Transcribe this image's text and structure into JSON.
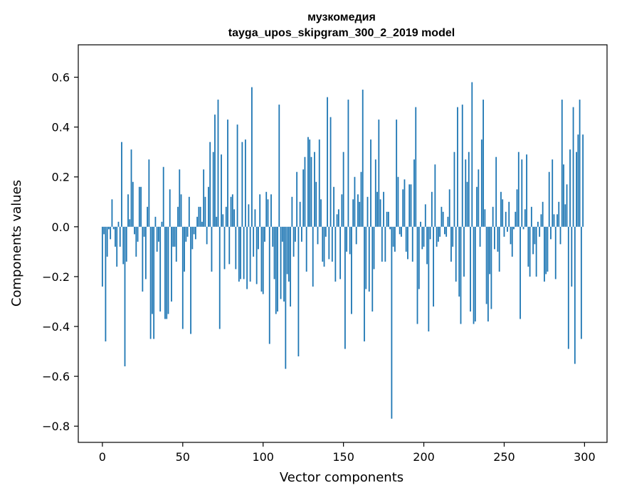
{
  "chart_data": {
    "type": "bar",
    "title": "музкомедия",
    "subtitle": "tayga_upos_skipgram_300_2_2019 model",
    "xlabel": "Vector components",
    "ylabel": "Components values",
    "xlim": [
      -15,
      314
    ],
    "ylim": [
      -0.865,
      0.73
    ],
    "xticks": [
      0,
      50,
      100,
      150,
      200,
      250,
      300
    ],
    "xtick_labels": [
      "0",
      "50",
      "100",
      "150",
      "200",
      "250",
      "300"
    ],
    "yticks": [
      -0.8,
      -0.6,
      -0.4,
      -0.2,
      0.0,
      0.2,
      0.4,
      0.6
    ],
    "ytick_labels": [
      "−0.8",
      "−0.6",
      "−0.4",
      "−0.2",
      "0.0",
      "0.2",
      "0.4",
      "0.6"
    ],
    "grid": false,
    "bar_color": "#1f77b4",
    "x": "0..299",
    "values": [
      -0.24,
      -0.03,
      -0.46,
      -0.12,
      -0.01,
      -0.05,
      0.11,
      -0.01,
      -0.08,
      -0.16,
      0.02,
      -0.08,
      0.34,
      -0.15,
      -0.56,
      -0.14,
      0.13,
      0.03,
      0.31,
      0.18,
      -0.03,
      -0.12,
      -0.06,
      0.16,
      0.16,
      -0.26,
      -0.04,
      -0.21,
      0.08,
      0.27,
      -0.45,
      -0.35,
      -0.45,
      0.04,
      -0.1,
      -0.06,
      -0.34,
      0.02,
      0.24,
      -0.37,
      -0.37,
      -0.35,
      0.15,
      -0.3,
      -0.08,
      -0.08,
      -0.14,
      0.08,
      0.23,
      0.13,
      -0.41,
      -0.18,
      -0.06,
      -0.04,
      0.12,
      -0.43,
      -0.09,
      -0.03,
      -0.05,
      0.04,
      0.08,
      0.08,
      0.02,
      0.23,
      0.12,
      -0.07,
      0.16,
      0.34,
      -0.18,
      0.3,
      0.45,
      0.04,
      0.51,
      -0.41,
      0.29,
      0.05,
      -0.17,
      0.08,
      0.43,
      -0.15,
      0.12,
      0.13,
      0.07,
      -0.17,
      0.41,
      -0.22,
      -0.21,
      0.34,
      -0.21,
      0.35,
      -0.25,
      0.09,
      -0.22,
      0.56,
      -0.12,
      0.07,
      -0.23,
      -0.09,
      0.13,
      -0.26,
      -0.27,
      -0.06,
      0.14,
      0.11,
      -0.47,
      0.13,
      -0.08,
      -0.21,
      -0.35,
      -0.34,
      0.49,
      -0.29,
      -0.06,
      -0.3,
      -0.57,
      -0.19,
      -0.22,
      -0.32,
      0.12,
      -0.12,
      -0.06,
      0.22,
      -0.52,
      0.1,
      -0.06,
      0.23,
      0.28,
      -0.18,
      0.36,
      0.35,
      0.28,
      -0.24,
      0.3,
      0.18,
      -0.07,
      0.35,
      0.11,
      -0.14,
      -0.16,
      -0.04,
      0.52,
      -0.13,
      0.44,
      -0.14,
      0.16,
      -0.22,
      0.05,
      0.07,
      -0.21,
      0.13,
      0.3,
      -0.49,
      -0.1,
      0.51,
      -0.11,
      -0.35,
      0.11,
      0.2,
      -0.07,
      0.13,
      0.1,
      0.22,
      0.55,
      -0.46,
      -0.25,
      0.12,
      -0.26,
      0.35,
      -0.34,
      -0.17,
      0.27,
      0.14,
      0.43,
      0.11,
      -0.14,
      0.14,
      -0.14,
      0.06,
      0.06,
      -0.01,
      -0.77,
      -0.08,
      -0.1,
      0.43,
      0.2,
      -0.03,
      -0.04,
      0.15,
      0.19,
      -0.1,
      -0.13,
      0.17,
      0.17,
      -0.14,
      0.27,
      0.48,
      -0.39,
      -0.25,
      0.02,
      -0.09,
      -0.08,
      0.09,
      -0.15,
      -0.42,
      -0.05,
      0.14,
      -0.32,
      0.25,
      -0.08,
      -0.06,
      -0.04,
      0.08,
      0.06,
      -0.03,
      -0.04,
      0.04,
      0.15,
      -0.14,
      -0.08,
      0.3,
      -0.22,
      0.48,
      -0.28,
      -0.39,
      0.49,
      -0.2,
      0.27,
      0.18,
      0.3,
      -0.34,
      0.58,
      -0.39,
      -0.38,
      0.16,
      0.23,
      -0.08,
      0.35,
      0.51,
      0.07,
      -0.31,
      -0.38,
      -0.19,
      -0.33,
      0.08,
      -0.09,
      0.28,
      -0.1,
      -0.18,
      0.14,
      0.11,
      -0.04,
      0.06,
      -0.02,
      0.1,
      -0.07,
      -0.12,
      -0.01,
      0.06,
      0.15,
      0.3,
      -0.37,
      0.27,
      -0.01,
      0.07,
      0.29,
      -0.16,
      -0.2,
      0.08,
      -0.11,
      -0.07,
      -0.2,
      0.02,
      -0.04,
      0.05,
      0.1,
      -0.22,
      -0.19,
      -0.18,
      0.22,
      -0.05,
      0.27,
      0.05,
      -0.21,
      0.05,
      0.1,
      -0.07,
      0.51,
      0.25,
      0.09,
      0.17,
      -0.49,
      0.31,
      -0.24,
      0.48,
      -0.55,
      0.3,
      0.37,
      0.51,
      -0.45,
      0.37
    ]
  }
}
